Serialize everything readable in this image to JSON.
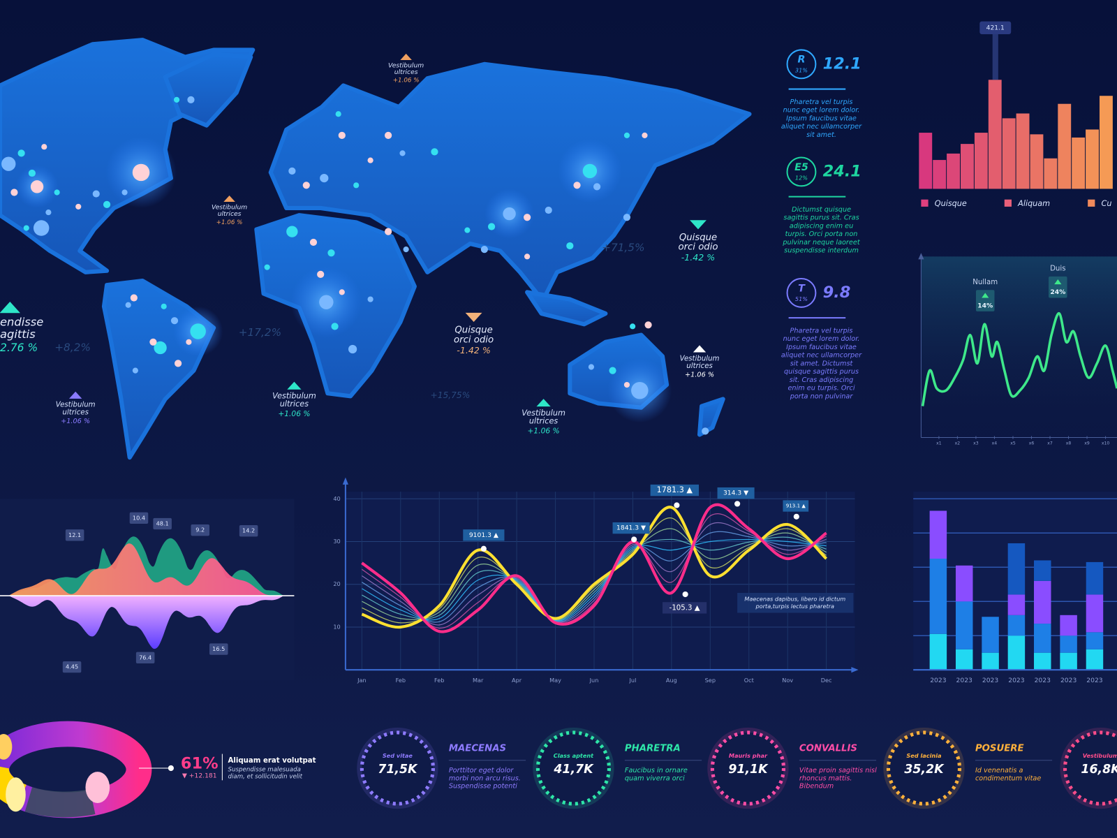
{
  "map": {
    "labels": [
      {
        "lines": [
          "Vestibulum",
          "ultrices"
        ],
        "change": "+1.06 %",
        "color": "#f0a060"
      },
      {
        "lines": [
          "Vestibulum",
          "ultrices"
        ],
        "change": "+1.06 %",
        "color": "#f0a060"
      },
      {
        "lines": [
          "Quisque",
          "orci odio"
        ],
        "change": "-1.42 %",
        "color": "#2ee6c8"
      },
      {
        "lines": [
          "endisse",
          "agittis"
        ],
        "change": "2.76 %",
        "color": "#2ee6c8"
      },
      {
        "lines": [
          "Quisque",
          "orci odio"
        ],
        "change": "-1.42 %",
        "color": "#f2b27a"
      },
      {
        "lines": [
          "Vestibulum",
          "ultrices"
        ],
        "change": "+1.06 %",
        "color": "#ffffff"
      },
      {
        "lines": [
          "Vestibulum",
          "ultrices"
        ],
        "change": "+1.06 %",
        "color": "#2ee6c8"
      },
      {
        "lines": [
          "Vestibulum",
          "ultrices"
        ],
        "change": "+1.06 %",
        "color": "#2ee6c8"
      },
      {
        "lines": [
          "Vestibulum",
          "ultrices"
        ],
        "change": "+1.06 %",
        "color": "#8a7bff"
      }
    ],
    "faint": [
      "+8,2%",
      "+17,2%",
      "+71,5%",
      "+15,75%"
    ]
  },
  "kpis": [
    {
      "letter": "R",
      "pct": "31%",
      "value": "12.1",
      "color": "#2fa8ff",
      "text": [
        "Pharetra vel turpis",
        "nunc eget lorem dolor.",
        "Ipsum faucibus vitae",
        "aliquet nec ullamcorper",
        "sit amet."
      ]
    },
    {
      "letter": "E5",
      "pct": "12%",
      "value": "24.1",
      "color": "#1ed6a0",
      "text": [
        "Dictumst quisque",
        "sagittis purus sit. Cras",
        "adipiscing enim eu",
        "turpis. Orci porta non",
        "pulvinar neque laoreet",
        "suspendisse interdum"
      ]
    },
    {
      "letter": "T",
      "pct": "51%",
      "value": "9.8",
      "color": "#7b7bff",
      "text": [
        "Pharetra vel turpis",
        "nunc eget lorem dolor.",
        "Ipsum faucibus vitae",
        "aliquet nec ullamcorper",
        "sit amet. Dictumst",
        "quisque sagittis purus",
        "sit. Cras adipiscing",
        "enim eu turpis. Orci",
        "porta non pulvinar"
      ]
    }
  ],
  "chart_data": [
    {
      "type": "bar",
      "values": [
        35,
        18,
        22,
        28,
        35,
        68,
        44,
        47,
        34,
        19,
        53,
        32,
        37,
        58
      ],
      "ylim": [
        0,
        100
      ],
      "color_from": "#d8387e",
      "color_to": "#f59a55",
      "annotation": "421.1",
      "legend": [
        {
          "name": "Quisque",
          "color": "#e0407e"
        },
        {
          "name": "Aliquam",
          "color": "#e8607a"
        },
        {
          "name": "Cu",
          "color": "#f08a5c"
        }
      ]
    },
    {
      "type": "line",
      "color": "#3ee88a",
      "x": [
        0.12,
        0.5,
        0.88,
        1.38,
        1.85,
        2.31,
        2.69,
        3.08,
        3.46,
        3.85,
        4.15,
        4.54,
        4.92,
        5.38,
        5.85,
        6.31,
        6.69,
        7.08,
        7.5,
        7.88,
        8.27,
        8.65,
        9.08,
        9.54,
        10,
        10.38,
        10.62
      ],
      "values": [
        16.7,
        36.5,
        26.6,
        25.4,
        32.5,
        42.5,
        56.3,
        40.5,
        62.3,
        44.4,
        52.4,
        36.5,
        22.6,
        25.4,
        32.5,
        44.4,
        36.5,
        56.3,
        68.3,
        52.4,
        58.3,
        44.4,
        32.5,
        40.5,
        50.4,
        36.5,
        26.6
      ],
      "xlim": [
        0,
        10.62
      ],
      "ylim": [
        0,
        100
      ],
      "xticks": [
        {
          "value": 1,
          "label": "x1"
        },
        {
          "value": 2,
          "label": "x2"
        },
        {
          "value": 3,
          "label": "x3"
        },
        {
          "value": 4,
          "label": "x4"
        },
        {
          "value": 5,
          "label": "x5"
        },
        {
          "value": 6,
          "label": "x6"
        },
        {
          "value": 7,
          "label": "x7"
        },
        {
          "value": 8,
          "label": "x8"
        },
        {
          "value": 9,
          "label": "x9"
        },
        {
          "value": 10,
          "label": "x10"
        }
      ],
      "annotations": [
        {
          "title": "Nullam",
          "text": "14%"
        },
        {
          "title": "Duis",
          "text": "24%"
        }
      ]
    },
    {
      "type": "line",
      "grid": true,
      "categories": [
        "Jan",
        "Feb",
        "Feb",
        "Mar",
        "Apr",
        "May",
        "Jun",
        "Jul",
        "Aug",
        "Sep",
        "Oct",
        "Nov",
        "Dec"
      ],
      "series": [
        {
          "color": "#ffe030",
          "values": [
            13,
            10,
            15,
            28,
            20,
            12,
            20,
            27,
            38,
            22,
            28,
            34,
            26
          ]
        },
        {
          "color": "#ff2d8a",
          "values": [
            25,
            18,
            9,
            14,
            22,
            11,
            15,
            30,
            18,
            38,
            33,
            26,
            32
          ]
        }
      ],
      "ylim": [
        0,
        40
      ],
      "yticks": [
        10,
        20,
        30,
        40
      ],
      "annotations": [
        "9101.3 ▲",
        "1841.3 ▼",
        "1781.3 ▲",
        "314.3 ▼",
        "913.1 ▲",
        "-105.3 ▲"
      ],
      "note": [
        "Maecenas dapibus, libero id dictum",
        "porta,turpis lectus pharetra"
      ]
    },
    {
      "type": "bar",
      "stacked": true,
      "categories": [
        "2023",
        "2023",
        "2023",
        "2023",
        "2023",
        "2023",
        "2023"
      ],
      "series": [
        {
          "color": "#22d8f2",
          "values": [
            21,
            12,
            10,
            20,
            10,
            10,
            12
          ]
        },
        {
          "color": "#1e7fe6",
          "values": [
            44,
            28,
            21,
            12,
            17,
            10,
            10
          ]
        },
        {
          "color": "#8a4dff",
          "values": [
            28,
            21,
            0,
            12,
            25,
            12,
            22
          ]
        },
        {
          "color": "#1558c0",
          "values": [
            0,
            0,
            0,
            30,
            12,
            0,
            19
          ]
        }
      ],
      "ylim": [
        0,
        100
      ]
    }
  ],
  "wave_labels": [
    "12.1",
    "10.4",
    "48.1",
    "9.2",
    "14.2",
    "4.45",
    "76.4",
    "16.5"
  ],
  "ring": {
    "pct": "61%",
    "change": "▼ +12.181",
    "title": "Aliquam erat volutpat",
    "text": [
      "Suspendisse malesuada",
      "diam, et sollicitudin velit"
    ]
  },
  "stats": [
    {
      "label": "Sed vitae",
      "value": "71,5K",
      "title": "MAECENAS",
      "color": "#8e7bff",
      "text": [
        "Porttitor eget dolor",
        "morbi non arcu risus.",
        "Suspendisse potenti"
      ]
    },
    {
      "label": "Class aptent",
      "value": "41,7K",
      "title": "PHARETRA",
      "color": "#2ee6a8",
      "text": [
        "Faucibus in ornare",
        "quam viverra orci"
      ]
    },
    {
      "label": "Mauris phar",
      "value": "91,1K",
      "title": "CONVALLIS",
      "color": "#ff4da6",
      "text": [
        "Vitae proin sagittis nisl",
        "rhoncus mattis.",
        "Bibendum"
      ]
    },
    {
      "label": "Sed lacinia",
      "value": "35,2K",
      "title": "POSUERE",
      "color": "#ffb13b",
      "text": [
        "Id venenatis a",
        "condimentum vitae"
      ]
    },
    {
      "label": "Vestibulum",
      "value": "16,8K",
      "color": "#ff4d8a"
    }
  ]
}
